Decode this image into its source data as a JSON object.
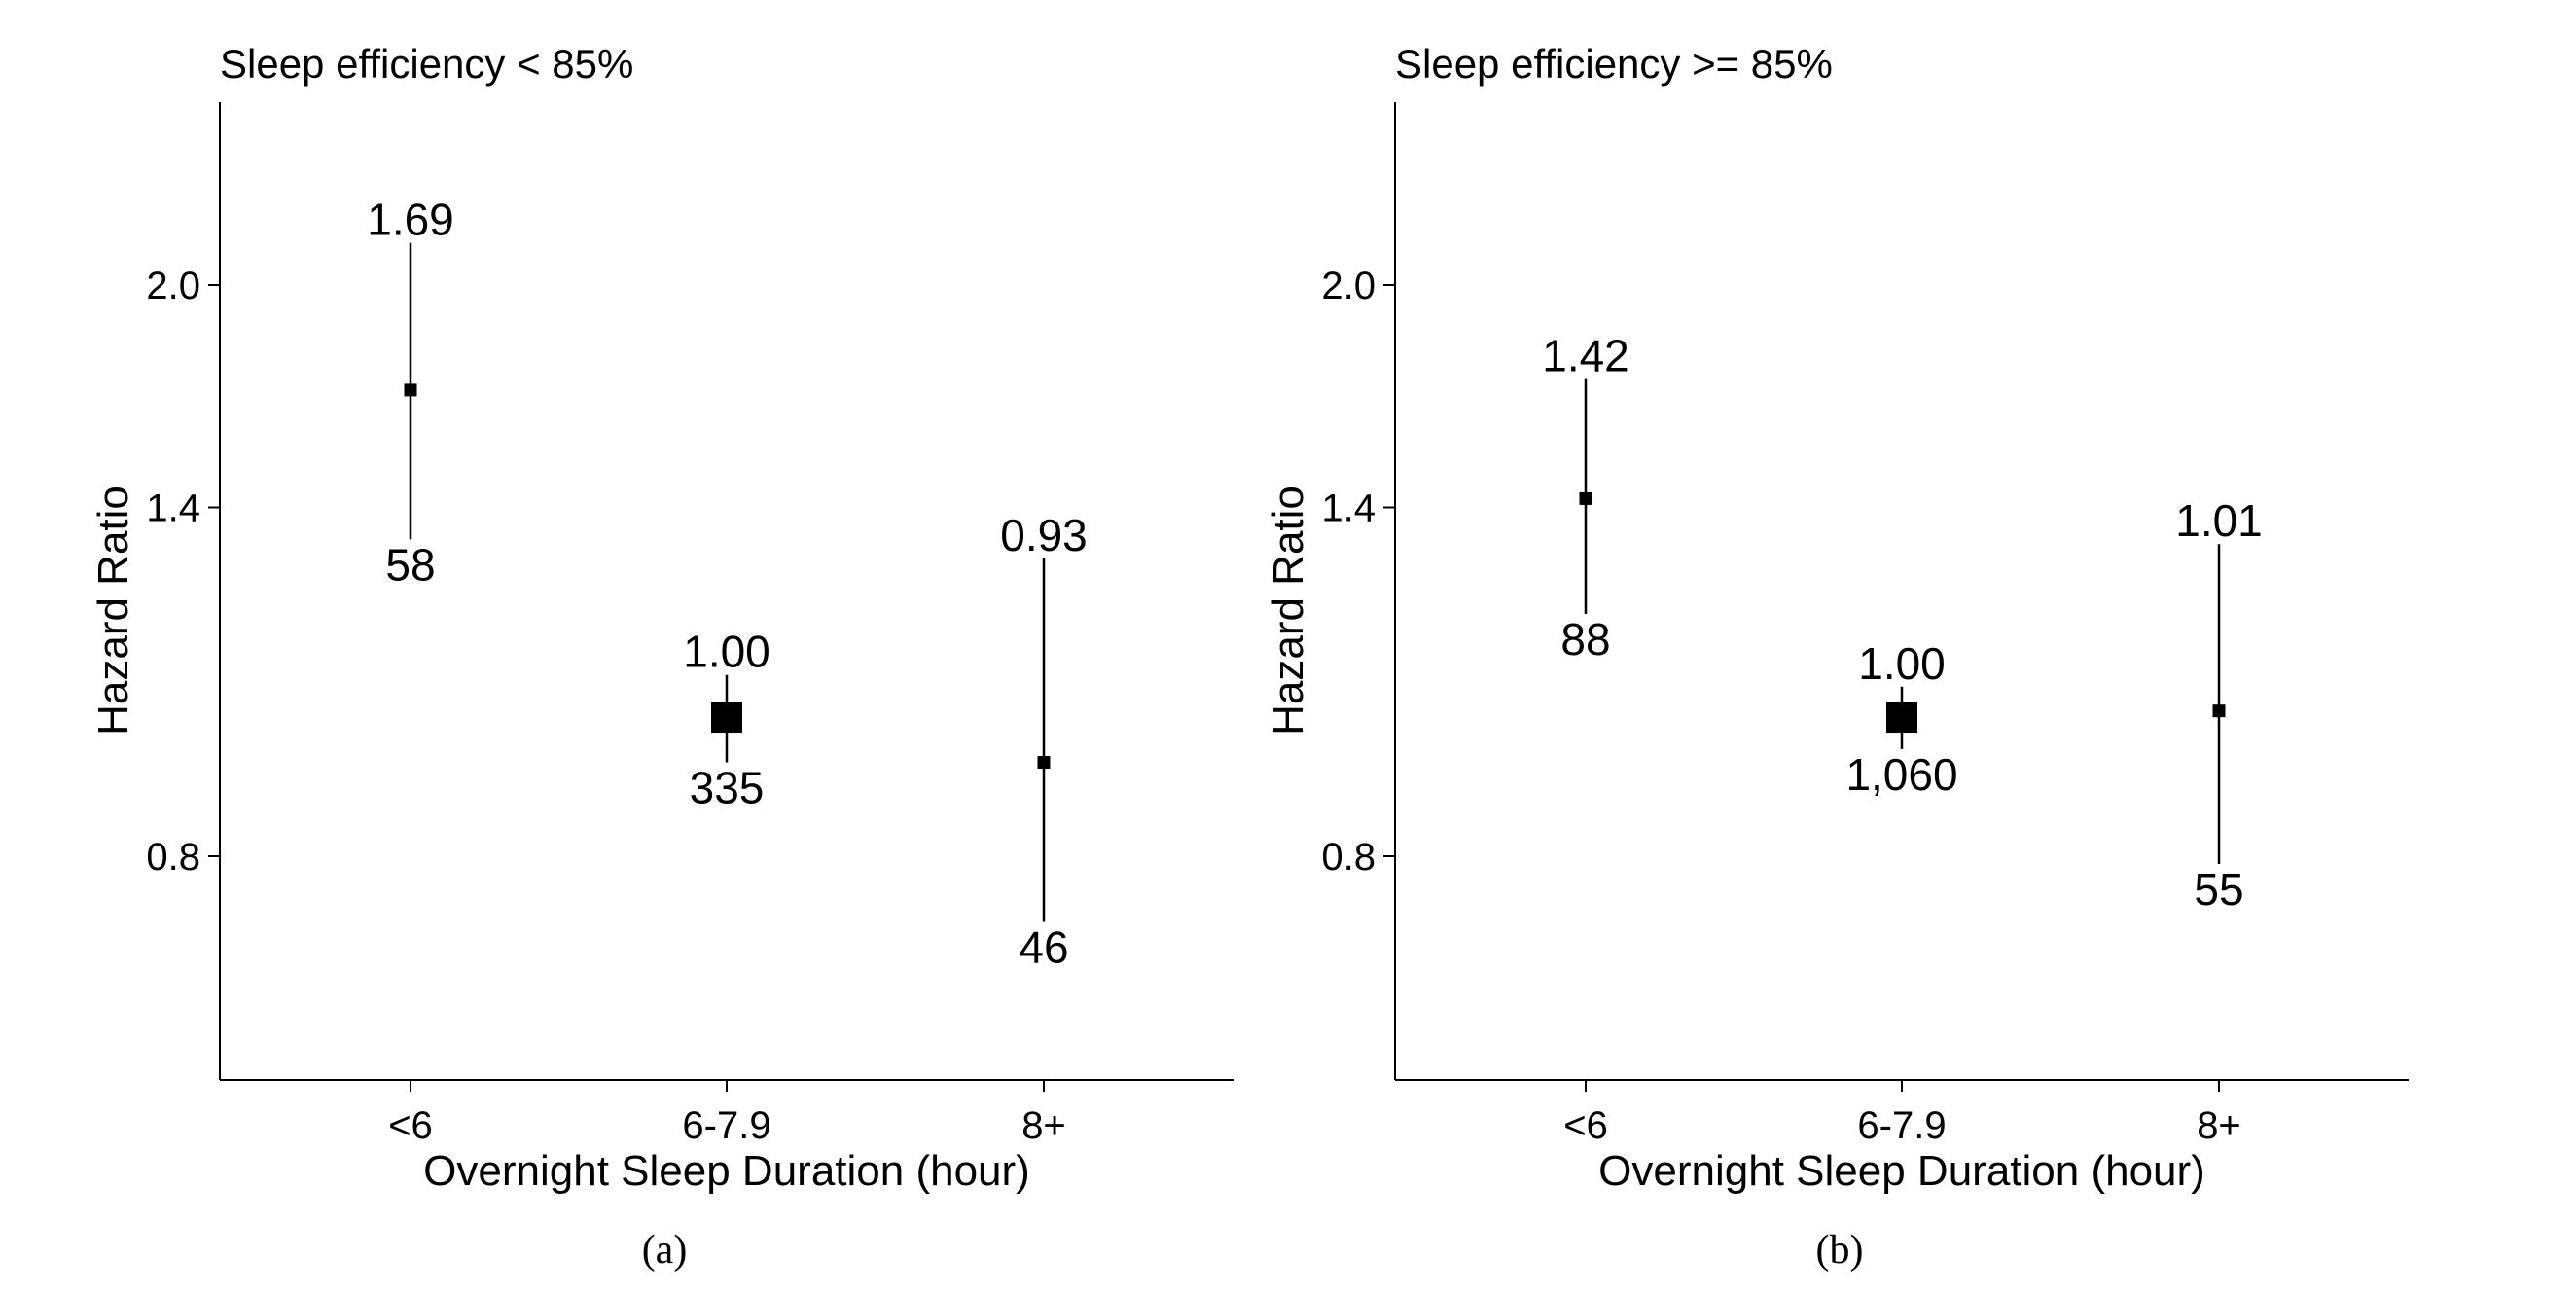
{
  "chart_data": [
    {
      "type": "scatter",
      "title": "Sleep efficiency < 85%",
      "xlabel": "Overnight Sleep Duration (hour)",
      "ylabel": "Hazard Ratio",
      "caption": "(a)",
      "categories": [
        "<6",
        "6-7.9",
        "8+"
      ],
      "y_ticks": [
        0.8,
        1.4,
        2.0
      ],
      "y_tick_labels": [
        "0.8",
        "1.4",
        "2.0"
      ],
      "ylim": [
        0.55,
        2.45
      ],
      "grid": false,
      "points": [
        {
          "category": "<6",
          "hr": 1.69,
          "ci_low": 1.33,
          "ci_high": 2.14,
          "label_top": "1.69",
          "label_bottom": "58",
          "marker": "small"
        },
        {
          "category": "6-7.9",
          "hr": 1.0,
          "ci_low": 0.93,
          "ci_high": 1.07,
          "label_top": "1.00",
          "label_bottom": "335",
          "marker": "large"
        },
        {
          "category": "8+",
          "hr": 0.93,
          "ci_low": 0.72,
          "ci_high": 1.29,
          "label_top": "0.93",
          "label_bottom": "46",
          "marker": "small"
        }
      ]
    },
    {
      "type": "scatter",
      "title": "Sleep efficiency >= 85%",
      "xlabel": "Overnight Sleep Duration (hour)",
      "ylabel": "Hazard Ratio",
      "caption": "(b)",
      "categories": [
        "<6",
        "6-7.9",
        "8+"
      ],
      "y_ticks": [
        0.8,
        1.4,
        2.0
      ],
      "y_tick_labels": [
        "0.8",
        "1.4",
        "2.0"
      ],
      "ylim": [
        0.55,
        2.45
      ],
      "grid": false,
      "points": [
        {
          "category": "<6",
          "hr": 1.42,
          "ci_low": 1.18,
          "ci_high": 1.72,
          "label_top": "1.42",
          "label_bottom": "88",
          "marker": "small"
        },
        {
          "category": "6-7.9",
          "hr": 1.0,
          "ci_low": 0.95,
          "ci_high": 1.05,
          "label_top": "1.00",
          "label_bottom": "1,060",
          "marker": "large"
        },
        {
          "category": "8+",
          "hr": 1.01,
          "ci_low": 0.79,
          "ci_high": 1.32,
          "label_top": "1.01",
          "label_bottom": "55",
          "marker": "small"
        }
      ]
    }
  ]
}
